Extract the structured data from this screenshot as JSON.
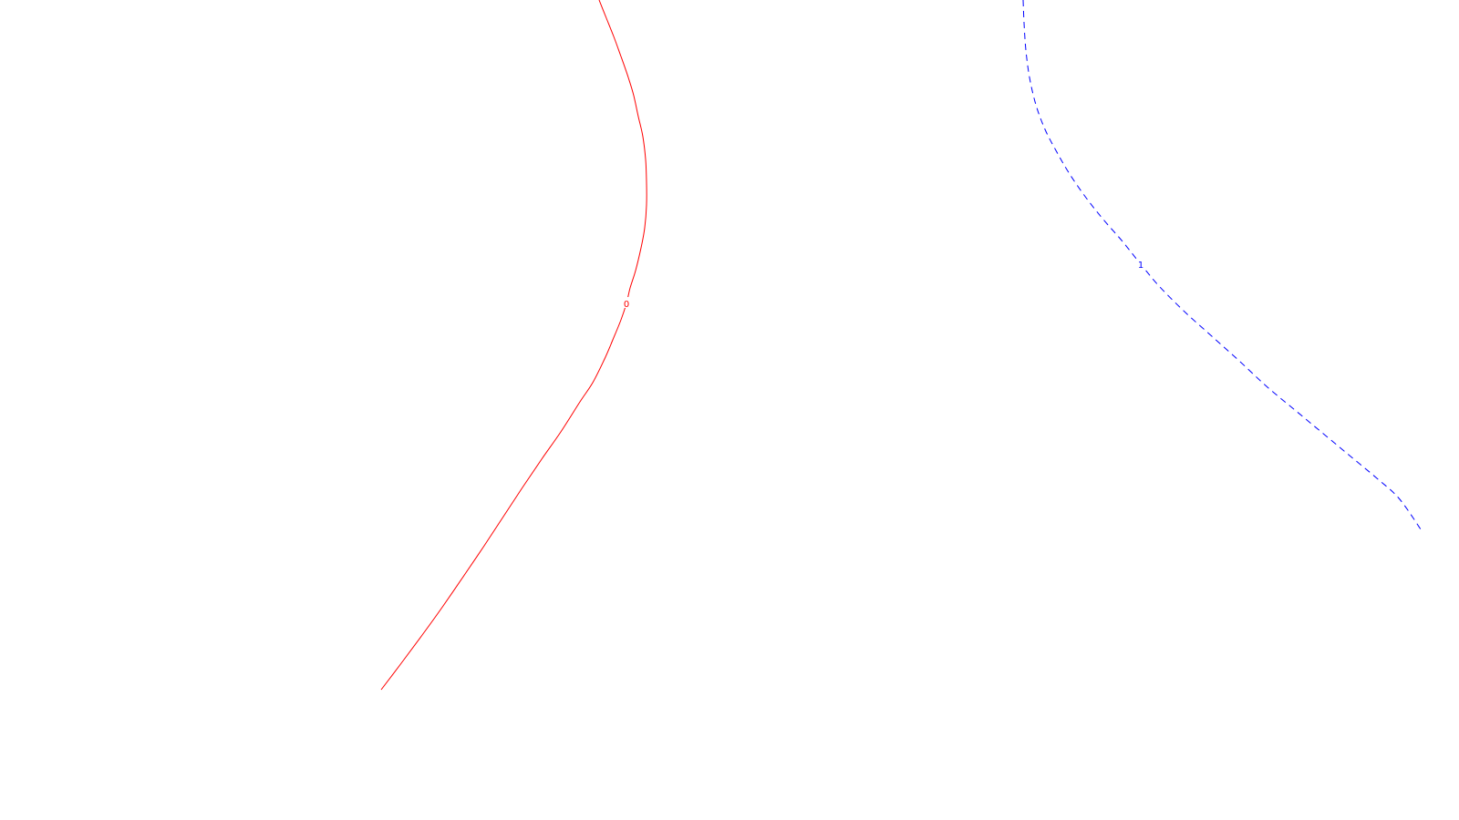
{
  "chart_data": {
    "type": "line",
    "title": "",
    "xlabel": "",
    "ylabel": "",
    "grid": false,
    "legend": "none",
    "axes_visible": false,
    "series": [
      {
        "label": "0",
        "color": "#ff0000",
        "line_style": "solid",
        "points": [
          [
            657,
            0
          ],
          [
            665,
            20
          ],
          [
            673,
            40
          ],
          [
            681,
            62
          ],
          [
            689,
            85
          ],
          [
            695,
            105
          ],
          [
            700,
            128
          ],
          [
            705,
            150
          ],
          [
            708,
            175
          ],
          [
            709,
            200
          ],
          [
            709,
            225
          ],
          [
            707,
            250
          ],
          [
            703,
            272
          ],
          [
            697,
            297
          ],
          [
            691,
            316
          ],
          [
            687,
            333
          ],
          [
            681,
            351
          ],
          [
            672,
            373
          ],
          [
            663,
            394
          ],
          [
            650,
            420
          ],
          [
            636,
            441
          ],
          [
            615,
            474
          ],
          [
            594,
            504
          ],
          [
            573,
            535
          ],
          [
            552,
            567
          ],
          [
            531,
            599
          ],
          [
            510,
            630
          ],
          [
            486,
            665
          ],
          [
            463,
            697
          ],
          [
            440,
            728
          ],
          [
            418,
            757
          ]
        ]
      },
      {
        "label": "1",
        "color": "#0000ff",
        "line_style": "dashed",
        "points": [
          [
            1122,
            0
          ],
          [
            1123,
            25
          ],
          [
            1125,
            55
          ],
          [
            1129,
            85
          ],
          [
            1136,
            115
          ],
          [
            1146,
            142
          ],
          [
            1159,
            167
          ],
          [
            1173,
            191
          ],
          [
            1191,
            217
          ],
          [
            1210,
            241
          ],
          [
            1231,
            265
          ],
          [
            1251,
            290
          ],
          [
            1272,
            315
          ],
          [
            1300,
            343
          ],
          [
            1330,
            370
          ],
          [
            1360,
            397
          ],
          [
            1390,
            425
          ],
          [
            1420,
            450
          ],
          [
            1450,
            475
          ],
          [
            1480,
            500
          ],
          [
            1510,
            525
          ],
          [
            1535,
            548
          ],
          [
            1560,
            584
          ]
        ]
      }
    ]
  }
}
